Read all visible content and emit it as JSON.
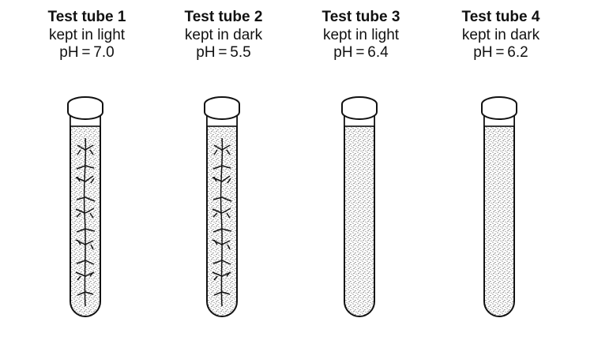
{
  "tubes": [
    {
      "title": "Test tube 1",
      "condition": "kept in light",
      "ph": "pH = 7.0",
      "has_plant": true
    },
    {
      "title": "Test tube 2",
      "condition": "kept in dark",
      "ph": "pH = 5.5",
      "has_plant": true
    },
    {
      "title": "Test tube 3",
      "condition": "kept in light",
      "ph": "pH = 6.4",
      "has_plant": false
    },
    {
      "title": "Test tube 4",
      "condition": "kept in dark",
      "ph": "pH = 6.2",
      "has_plant": false
    }
  ]
}
